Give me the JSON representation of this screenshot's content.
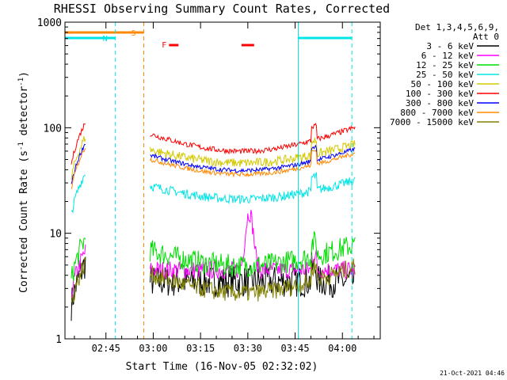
{
  "chart_data": {
    "type": "line",
    "title": "RHESSI Observing Summary Count Rates, Corrected",
    "xlabel": "Start Time (16-Nov-05 02:32:02)",
    "ylabel": "Corrected Count Rate (s⁻¹ detector⁻¹)",
    "ylabel_parts": {
      "main": "Corrected Count Rate (s",
      "sup1": "-1",
      "mid": " detector",
      "sup2": "-1",
      "end": ")"
    },
    "yscale": "log",
    "xlim_minutes": [
      0,
      100
    ],
    "ylim": [
      1,
      1000
    ],
    "x_ticks": [
      "02:45",
      "03:00",
      "03:15",
      "03:30",
      "03:45",
      "04:00"
    ],
    "x_tick_minutes": [
      13,
      28,
      43,
      58,
      73,
      88
    ],
    "y_ticks": [
      "1",
      "10",
      "100",
      "1000"
    ],
    "y_tick_values": [
      1,
      10,
      100,
      1000
    ],
    "legend_header": [
      "Det 1,3,4,5,6,9,",
      "Att 0"
    ],
    "legend_position": "right",
    "series": [
      {
        "name": "3 - 6 keV",
        "color": "#000000",
        "base": 3.5,
        "amp": 0.0,
        "noise": 0.35,
        "flare": 0
      },
      {
        "name": "6 - 12 keV",
        "color": "#ff00ff",
        "base": 4.5,
        "amp": 0.0,
        "noise": 0.2,
        "flare": 1
      },
      {
        "name": "12 - 25 keV",
        "color": "#00dd00",
        "base": 6.0,
        "amp": 0.4,
        "noise": 0.25,
        "flare": 0
      },
      {
        "name": "25 - 50 keV",
        "color": "#00e5e5",
        "base": 25,
        "amp": 0.35,
        "noise": 0.1,
        "flare": 0
      },
      {
        "name": "50 - 100 keV",
        "color": "#d4c800",
        "base": 55,
        "amp": 0.35,
        "noise": 0.1,
        "flare": 0
      },
      {
        "name": "100 - 300 keV",
        "color": "#ff0000",
        "base": 75,
        "amp": 0.45,
        "noise": 0.06,
        "flare": 0
      },
      {
        "name": "300 - 800 keV",
        "color": "#0000ff",
        "base": 48,
        "amp": 0.4,
        "noise": 0.05,
        "flare": 0
      },
      {
        "name": "800 - 7000 keV",
        "color": "#ff8800",
        "base": 44,
        "amp": 0.4,
        "noise": 0.05,
        "flare": 0
      },
      {
        "name": "7000 - 15000 keV",
        "color": "#808000",
        "base": 3.5,
        "amp": 0.5,
        "noise": 0.2,
        "flare": 0
      }
    ],
    "markers": [
      {
        "label": "S",
        "color": "#ff8800",
        "from": 0,
        "to": 25
      },
      {
        "label": "N",
        "color": "#00e5e5",
        "from": 0,
        "to": 16
      },
      {
        "label": "",
        "color": "#00e5e5",
        "from": 74,
        "to": 91
      }
    ],
    "flare_marker": {
      "label": "F",
      "color": "#ff0000",
      "segments": [
        [
          33,
          36
        ],
        [
          56,
          60
        ]
      ]
    }
  },
  "footer": {
    "date": "21-Oct-2021 04:46"
  }
}
